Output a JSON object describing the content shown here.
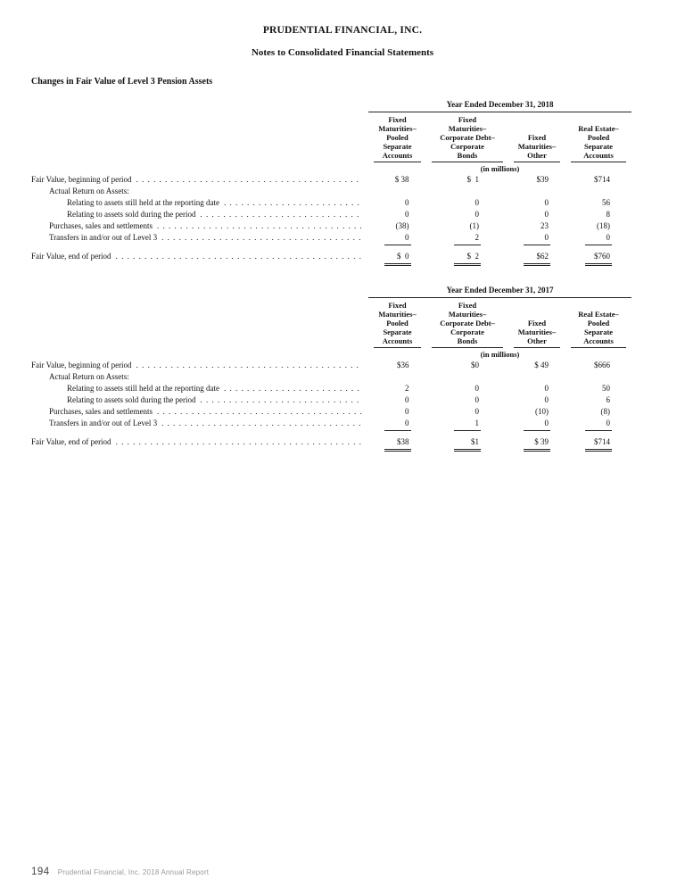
{
  "page": {
    "title": "PRUDENTIAL FINANCIAL, INC.",
    "subtitle": "Notes to Consolidated Financial Statements",
    "section_heading": "Changes in Fair Value of Level 3 Pension Assets"
  },
  "tables": [
    {
      "period_header": "Year Ended December 31, 2018",
      "columns": [
        "Fixed\nMaturities–\nPooled\nSeparate\nAccounts",
        "Fixed\nMaturities–\nCorporate Debt–\nCorporate\nBonds",
        "Fixed\nMaturities–\nOther",
        "Real Estate–\nPooled\nSeparate\nAccounts"
      ],
      "units_note": "(in millions)",
      "rows": [
        {
          "label": "Fair Value, beginning of period",
          "values": [
            "$ 38",
            "$  1",
            "$39",
            "$714"
          ]
        },
        {
          "label": "Actual Return on Assets:"
        },
        {
          "label": "Relating to assets still held at the reporting date",
          "values": [
            "0",
            "0",
            "0",
            "56"
          ]
        },
        {
          "label": "Relating to assets sold during the period",
          "values": [
            "0",
            "0",
            "0",
            "8"
          ]
        },
        {
          "label": "Purchases, sales and settlements",
          "values": [
            "(38)",
            "(1)",
            "23",
            "(18)"
          ]
        },
        {
          "label": "Transfers in and/or out of Level 3",
          "values": [
            "0",
            "2",
            "0",
            "0"
          ],
          "underline": "single"
        },
        {
          "label": "Fair Value, end of period",
          "values": [
            "$  0",
            "$  2",
            "$62",
            "$760"
          ],
          "underline": "double"
        }
      ]
    },
    {
      "period_header": "Year Ended December 31, 2017",
      "columns": [
        "Fixed\nMaturities–\nPooled\nSeparate\nAccounts",
        "Fixed\nMaturities–\nCorporate Debt–\nCorporate\nBonds",
        "Fixed\nMaturities–\nOther",
        "Real Estate–\nPooled\nSeparate\nAccounts"
      ],
      "units_note": "(in millions)",
      "rows": [
        {
          "label": "Fair Value, beginning of period",
          "values": [
            "$36",
            "$0",
            "$ 49",
            "$666"
          ]
        },
        {
          "label": "Actual Return on Assets:"
        },
        {
          "label": "Relating to assets still held at the reporting date",
          "values": [
            "2",
            "0",
            "0",
            "50"
          ]
        },
        {
          "label": "Relating to assets sold during the period",
          "values": [
            "0",
            "0",
            "0",
            "6"
          ]
        },
        {
          "label": "Purchases, sales and settlements",
          "values": [
            "0",
            "0",
            "(10)",
            "(8)"
          ]
        },
        {
          "label": "Transfers in and/or out of Level 3",
          "values": [
            "0",
            "1",
            "0",
            "0"
          ],
          "underline": "single"
        },
        {
          "label": "Fair Value, end of period",
          "values": [
            "$38",
            "$1",
            "$ 39",
            "$714"
          ],
          "underline": "double"
        }
      ]
    }
  ],
  "footer": {
    "page_number": "194",
    "report_name": "Prudential Financial, Inc. 2018 Annual Report"
  }
}
